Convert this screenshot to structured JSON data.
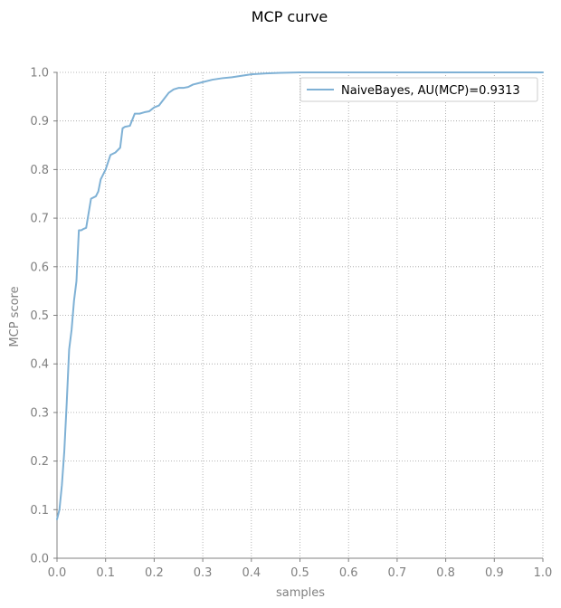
{
  "chart_data": {
    "type": "line",
    "title": "MCP curve",
    "xlabel": "samples",
    "ylabel": "MCP score",
    "xlim": [
      0,
      1.0
    ],
    "ylim": [
      0,
      1.0
    ],
    "grid": true,
    "legend_position": "top-right",
    "x_ticks": [
      "0.0",
      "0.1",
      "0.2",
      "0.3",
      "0.4",
      "0.5",
      "0.6",
      "0.7",
      "0.8",
      "0.9",
      "1.0"
    ],
    "y_ticks": [
      "0.0",
      "0.1",
      "0.2",
      "0.3",
      "0.4",
      "0.5",
      "0.6",
      "0.7",
      "0.8",
      "0.9",
      "1.0"
    ],
    "series": [
      {
        "name": "NaiveBayes, AU(MCP)=0.9313",
        "color": "#7fb1d5",
        "x": [
          0.0,
          0.005,
          0.01,
          0.015,
          0.02,
          0.025,
          0.03,
          0.035,
          0.04,
          0.045,
          0.05,
          0.055,
          0.06,
          0.07,
          0.08,
          0.085,
          0.09,
          0.1,
          0.11,
          0.12,
          0.13,
          0.135,
          0.14,
          0.15,
          0.16,
          0.17,
          0.18,
          0.19,
          0.2,
          0.21,
          0.22,
          0.23,
          0.24,
          0.25,
          0.26,
          0.27,
          0.28,
          0.3,
          0.32,
          0.34,
          0.36,
          0.38,
          0.4,
          0.43,
          0.46,
          0.5,
          0.6,
          0.7,
          0.8,
          0.9,
          1.0
        ],
        "y": [
          0.08,
          0.1,
          0.15,
          0.22,
          0.32,
          0.43,
          0.47,
          0.53,
          0.57,
          0.675,
          0.675,
          0.678,
          0.68,
          0.74,
          0.745,
          0.755,
          0.78,
          0.8,
          0.83,
          0.835,
          0.845,
          0.885,
          0.888,
          0.89,
          0.915,
          0.915,
          0.918,
          0.92,
          0.928,
          0.932,
          0.945,
          0.958,
          0.965,
          0.968,
          0.968,
          0.97,
          0.975,
          0.98,
          0.985,
          0.988,
          0.99,
          0.993,
          0.996,
          0.998,
          0.999,
          1.0,
          1.0,
          1.0,
          1.0,
          1.0,
          1.0
        ]
      }
    ]
  }
}
